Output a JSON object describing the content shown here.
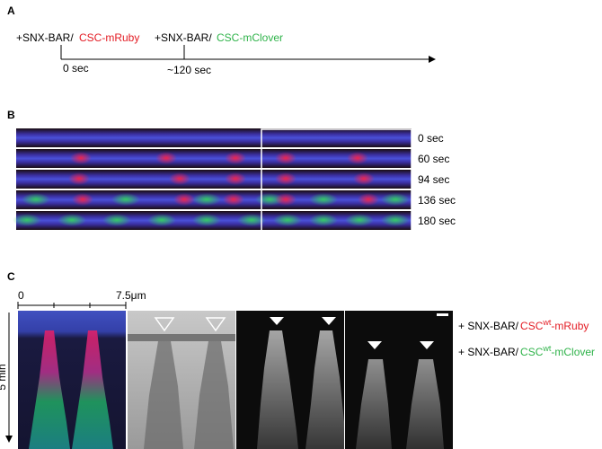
{
  "panels": {
    "a": {
      "label": "A",
      "steps": [
        {
          "prefix": "+SNX-BAR/",
          "name": "CSC-mRuby",
          "time": "0 sec"
        },
        {
          "prefix": "+SNX-BAR/",
          "name": "CSC-mClover",
          "time": "~120 sec"
        }
      ]
    },
    "b": {
      "label": "B",
      "times": [
        "0 sec",
        "60 sec",
        "94 sec",
        "136 sec",
        "180 sec"
      ]
    },
    "c": {
      "label": "C",
      "scale_start": "0",
      "scale_end": "7.5μm",
      "time_axis": "5 min",
      "legend": [
        {
          "prefix": "+ SNX-BAR/",
          "protein": "CSC",
          "superscript": "wt",
          "suffix": "-mRuby"
        },
        {
          "prefix": "+ SNX-BAR/",
          "protein": "CSC",
          "superscript": "wt",
          "suffix": "-mClover"
        }
      ]
    }
  }
}
